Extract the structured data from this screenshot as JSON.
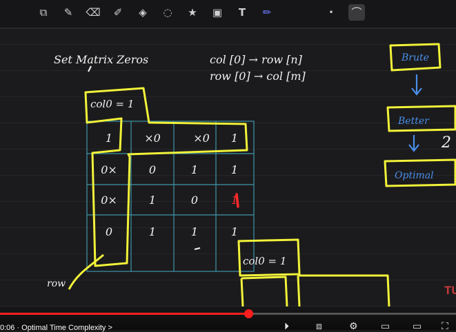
{
  "toolbar": {
    "tools": [
      {
        "name": "lasso-select-icon",
        "glyph": "⧉"
      },
      {
        "name": "pen-icon",
        "glyph": "✎"
      },
      {
        "name": "eraser-icon",
        "glyph": "⌫"
      },
      {
        "name": "highlighter-icon",
        "glyph": "✐"
      },
      {
        "name": "shapes-icon",
        "glyph": "◈"
      },
      {
        "name": "lasso-icon",
        "glyph": "◌"
      },
      {
        "name": "sticker-icon",
        "glyph": "★"
      },
      {
        "name": "image-icon",
        "glyph": "▣"
      },
      {
        "name": "text-icon",
        "glyph": "T"
      },
      {
        "name": "color-pen-icon",
        "glyph": "✏"
      }
    ],
    "dot_glyph": "•",
    "stroke_glyph": "⌒"
  },
  "board": {
    "title": "Set Matrix Zeros",
    "note_line1": "col [0] → row [n]",
    "note_line2": "row [0] → col [m]",
    "col0_label": "col0 = 1",
    "col0_label_2": "col0 = 1",
    "row_label": "row",
    "grid": [
      [
        "1",
        "×0",
        "×0",
        "1"
      ],
      [
        "0×",
        "0",
        "1",
        "1"
      ],
      [
        "0×",
        "1",
        "0",
        "1"
      ],
      [
        "0",
        "1",
        "1",
        "1"
      ]
    ],
    "flow": [
      "Brute",
      "Better",
      "Optimal"
    ],
    "side_number": "2",
    "colors": {
      "highlight": "#f2f23a",
      "grid": "#3f97aa",
      "ink": "#f2f2f2",
      "accent": "#ff2a2a"
    }
  },
  "player": {
    "time_label": "0:06 · Optimal Time Complexity >",
    "progress": 0.545
  },
  "watermark": "TU"
}
